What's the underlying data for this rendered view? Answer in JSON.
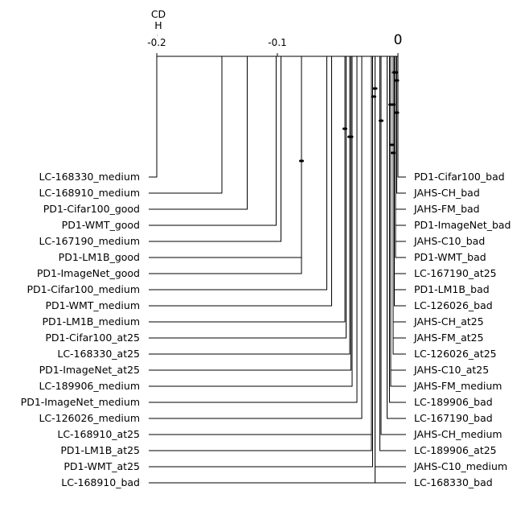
{
  "chart_data": {
    "type": "critical-difference-diagram",
    "cd_label": "CD",
    "cd_letter": "H",
    "axis": {
      "xlim": [
        -0.2,
        0
      ],
      "ticks": [
        {
          "value": -0.2,
          "label": "-0.2"
        },
        {
          "value": -0.1,
          "label": "-0.1"
        },
        {
          "value": 0,
          "label": "0"
        }
      ]
    },
    "cd_value": 0.0,
    "left_methods": [
      {
        "name": "LC-168330_medium",
        "score": -0.2
      },
      {
        "name": "LC-168910_medium",
        "score": -0.146
      },
      {
        "name": "PD1-Cifar100_good",
        "score": -0.125
      },
      {
        "name": "PD1-WMT_good",
        "score": -0.101
      },
      {
        "name": "LC-167190_medium",
        "score": -0.097
      },
      {
        "name": "PD1-LM1B_good",
        "score": -0.08
      },
      {
        "name": "PD1-ImageNet_good",
        "score": -0.08
      },
      {
        "name": "PD1-Cifar100_medium",
        "score": -0.059
      },
      {
        "name": "PD1-WMT_medium",
        "score": -0.055
      },
      {
        "name": "PD1-LM1B_medium",
        "score": -0.044
      },
      {
        "name": "PD1-Cifar100_at25",
        "score": -0.043
      },
      {
        "name": "LC-168330_at25",
        "score": -0.04
      },
      {
        "name": "PD1-ImageNet_at25",
        "score": -0.039
      },
      {
        "name": "LC-189906_medium",
        "score": -0.038
      },
      {
        "name": "PD1-ImageNet_medium",
        "score": -0.034
      },
      {
        "name": "LC-126026_medium",
        "score": -0.03
      },
      {
        "name": "LC-168910_at25",
        "score": -0.022
      },
      {
        "name": "PD1-LM1B_at25",
        "score": -0.022
      },
      {
        "name": "PD1-WMT_at25",
        "score": -0.021
      },
      {
        "name": "LC-168910_bad",
        "score": -0.019
      }
    ],
    "right_methods": [
      {
        "name": "PD1-Cifar100_bad",
        "score": 0.0
      },
      {
        "name": "JAHS-CH_bad",
        "score": -0.001
      },
      {
        "name": "JAHS-FM_bad",
        "score": -0.002
      },
      {
        "name": "PD1-ImageNet_bad",
        "score": -0.002
      },
      {
        "name": "JAHS-C10_bad",
        "score": -0.002
      },
      {
        "name": "PD1-WMT_bad",
        "score": -0.002
      },
      {
        "name": "LC-167190_at25",
        "score": -0.003
      },
      {
        "name": "PD1-LM1B_bad",
        "score": -0.003
      },
      {
        "name": "LC-126026_bad",
        "score": -0.003
      },
      {
        "name": "JAHS-CH_at25",
        "score": -0.004
      },
      {
        "name": "JAHS-FM_at25",
        "score": -0.004
      },
      {
        "name": "LC-126026_at25",
        "score": -0.004
      },
      {
        "name": "JAHS-C10_at25",
        "score": -0.006
      },
      {
        "name": "JAHS-FM_medium",
        "score": -0.006
      },
      {
        "name": "LC-189906_bad",
        "score": -0.007
      },
      {
        "name": "LC-167190_bad",
        "score": -0.009
      },
      {
        "name": "JAHS-CH_medium",
        "score": -0.014
      },
      {
        "name": "LC-189906_at25",
        "score": -0.015
      },
      {
        "name": "JAHS-C10_medium",
        "score": -0.019
      },
      {
        "name": "LC-168330_bad",
        "score": -0.019
      }
    ],
    "cliques": [
      [
        -0.004,
        -0.001
      ],
      [
        -0.002,
        0.0
      ],
      [
        -0.02,
        -0.018
      ],
      [
        -0.021,
        -0.019
      ],
      [
        -0.007,
        -0.003
      ],
      [
        -0.002,
        0.0
      ],
      [
        -0.015,
        -0.013
      ],
      [
        -0.045,
        -0.043
      ],
      [
        -0.041,
        -0.038
      ],
      [
        -0.006,
        -0.004
      ],
      [
        -0.005,
        -0.003
      ],
      [
        -0.081,
        -0.079
      ]
    ]
  }
}
